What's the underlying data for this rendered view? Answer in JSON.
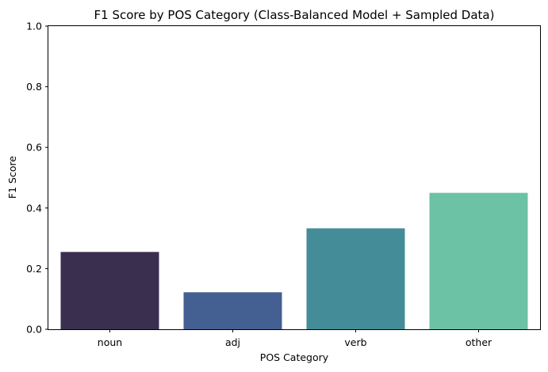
{
  "chart_data": {
    "type": "bar",
    "title": "F1 Score by POS Category (Class-Balanced Model + Sampled Data)",
    "xlabel": "POS Category",
    "ylabel": "F1 Score",
    "categories": [
      "noun",
      "adj",
      "verb",
      "other"
    ],
    "values": [
      0.255,
      0.122,
      0.333,
      0.45
    ],
    "colors": [
      "#3b2f50",
      "#445f91",
      "#448d98",
      "#6cc2a5"
    ],
    "ylim": [
      0,
      1.0
    ],
    "yticks": [
      {
        "value": 0.0,
        "label": "0.0"
      },
      {
        "value": 0.2,
        "label": "0.2"
      },
      {
        "value": 0.4,
        "label": "0.4"
      },
      {
        "value": 0.6,
        "label": "0.6"
      },
      {
        "value": 0.8,
        "label": "0.8"
      },
      {
        "value": 1.0,
        "label": "1.0"
      }
    ],
    "grid": false,
    "legend": "none"
  }
}
